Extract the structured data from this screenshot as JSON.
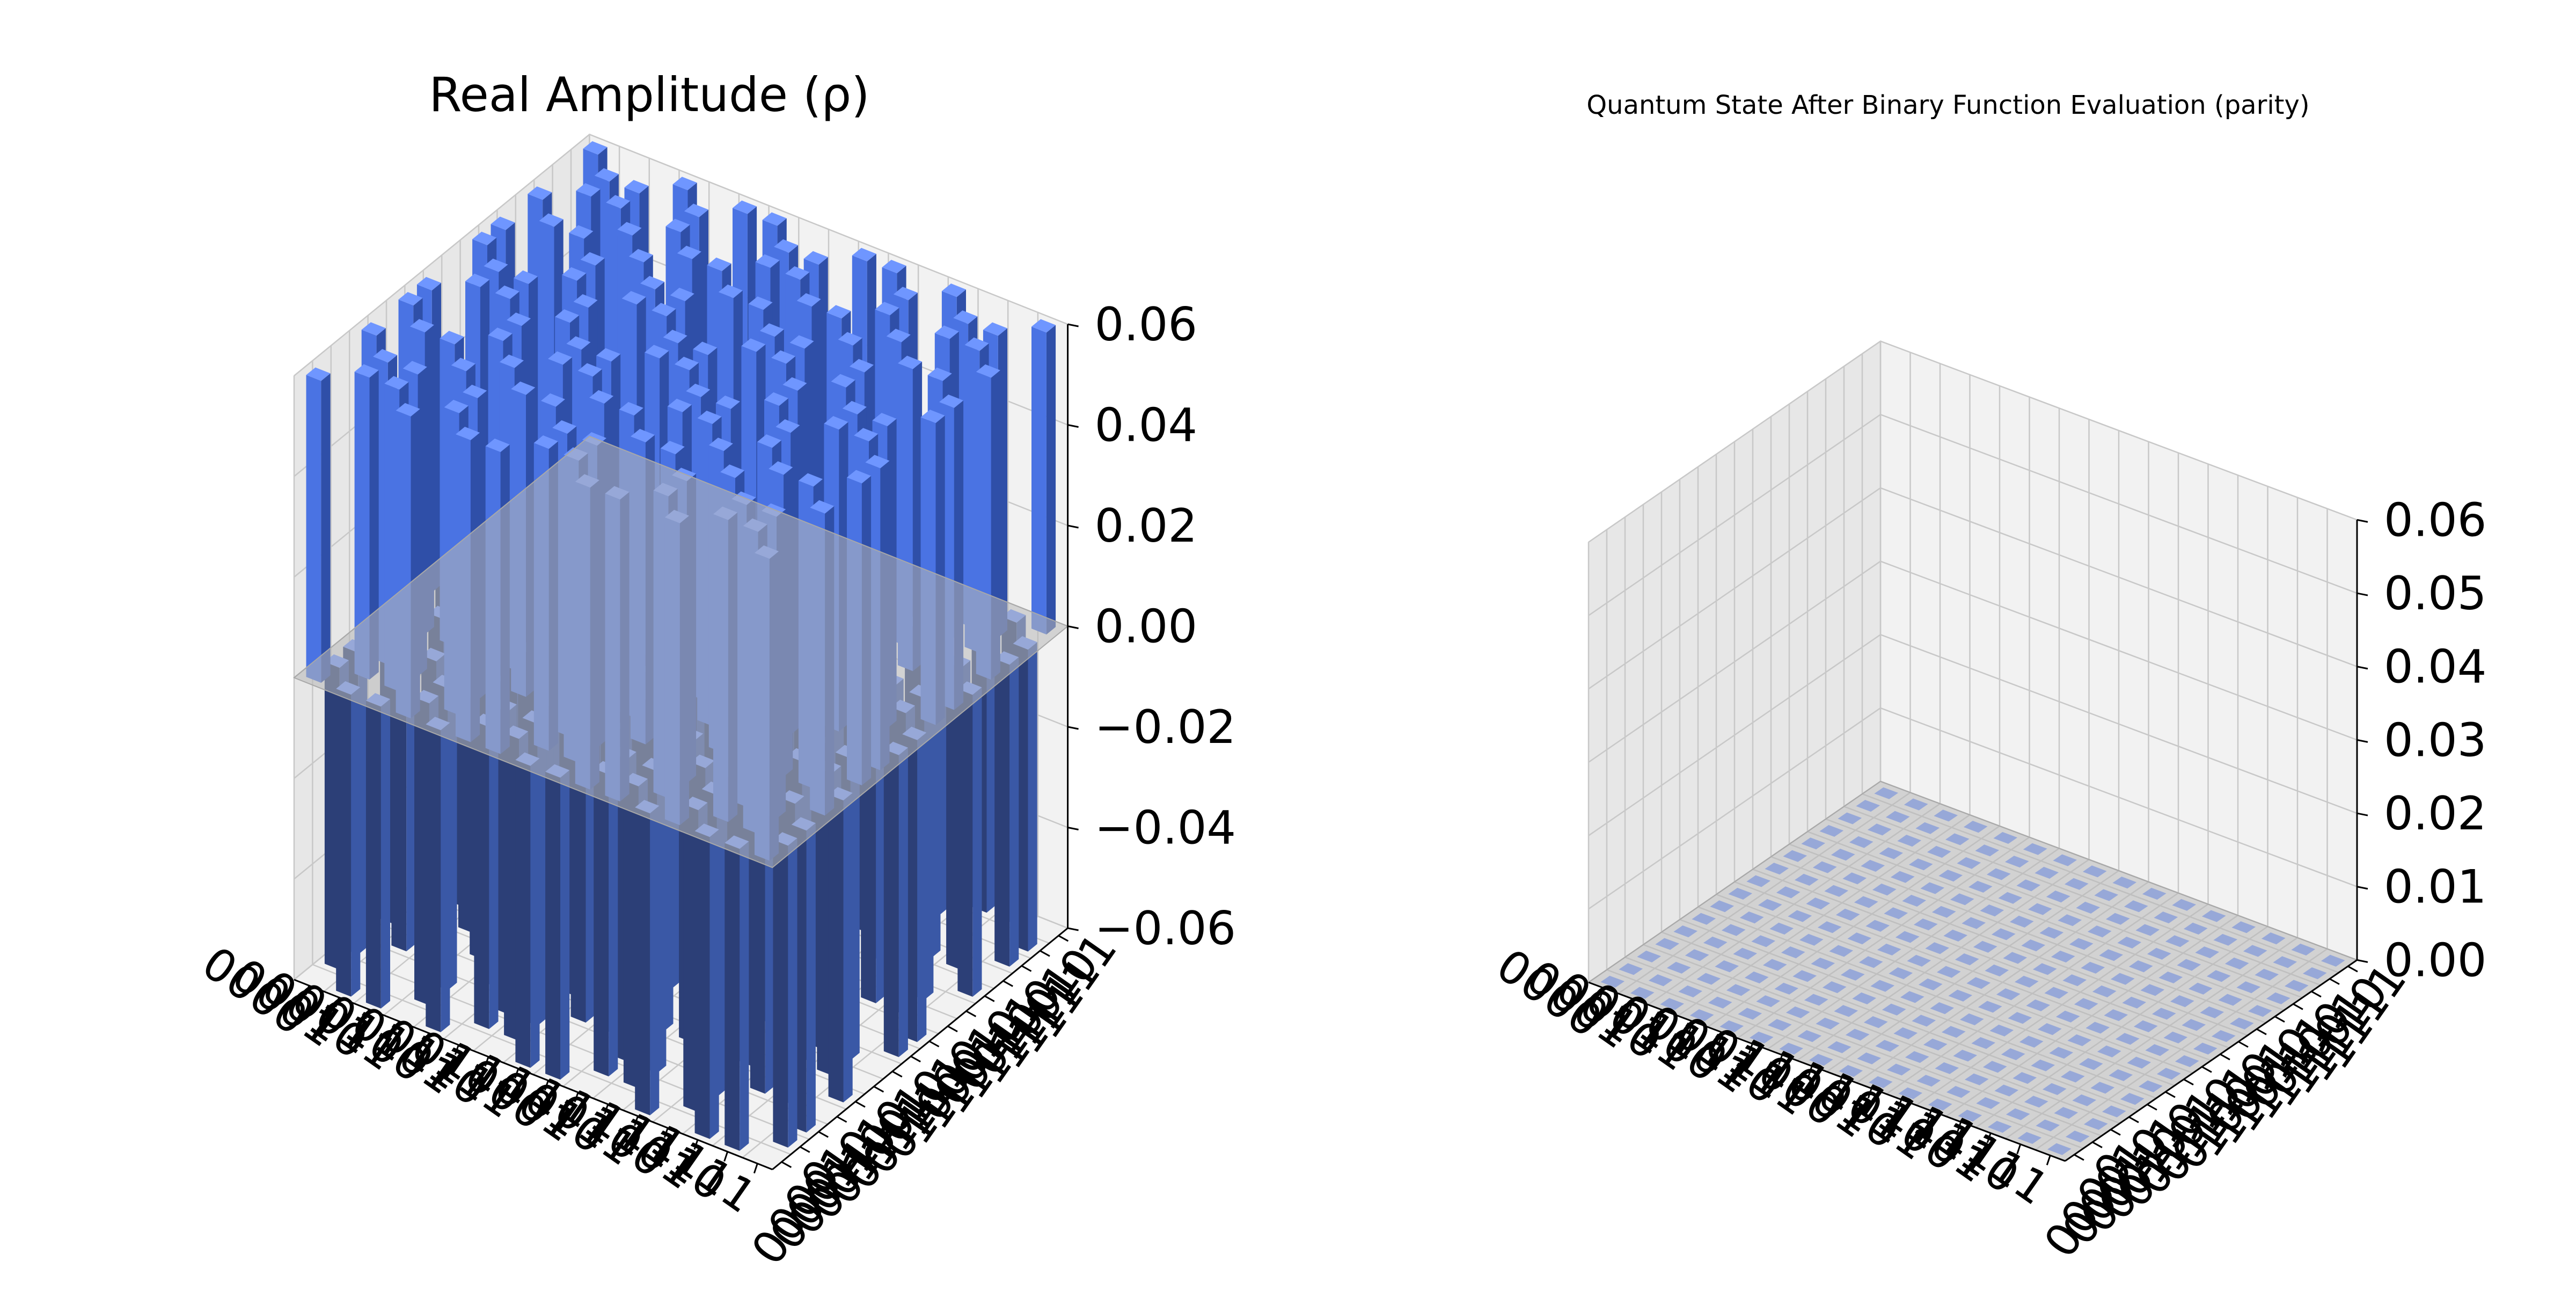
{
  "colors": {
    "bar_top": "#6f96ff",
    "bar_front": "#4a73e3",
    "bar_side": "#2f4fa8",
    "bar_neg_front": "#2c3f77",
    "bar_neg_side": "#3a58a6",
    "pane": "#f2f2f2",
    "pane_dark": "#e7e7e7",
    "grid": "#c8c8c8",
    "zero_plane": "#b8b8b8"
  },
  "chart_data": [
    {
      "type": "bar3d",
      "title": "Real Amplitude (ρ)",
      "row_labels": [
        "0000",
        "0001",
        "0010",
        "0011",
        "0100",
        "0101",
        "0110",
        "0111",
        "1000",
        "1001",
        "1010",
        "1011",
        "1100",
        "1101",
        "1110",
        "1111"
      ],
      "col_labels": [
        "0000",
        "0001",
        "0010",
        "0011",
        "0100",
        "0101",
        "0110",
        "0111",
        "1000",
        "1001",
        "1010",
        "1011",
        "1100",
        "1101",
        "1110",
        "1111"
      ],
      "zticks": [
        "−0.06",
        "−0.04",
        "−0.02",
        "0.00",
        "0.02",
        "0.04",
        "0.06"
      ],
      "zlim": [
        -0.0625,
        0.0625
      ],
      "grid": true,
      "matrix_rule": "rho[i][j] = 0.0625 * (-1)^(popcount(i) + popcount(j))",
      "row_parity": [
        1,
        -1,
        -1,
        1,
        -1,
        1,
        1,
        -1,
        -1,
        1,
        1,
        -1,
        1,
        -1,
        -1,
        1
      ],
      "value_magnitude": 0.0625
    },
    {
      "type": "bar3d",
      "title": "Quantum State After Binary Function Evaluation (parity)",
      "row_labels": [
        "0000",
        "0001",
        "0010",
        "0011",
        "0100",
        "0101",
        "0110",
        "0111",
        "1000",
        "1001",
        "1010",
        "1011",
        "1100",
        "1101",
        "1110",
        "1111"
      ],
      "col_labels": [
        "0000",
        "0001",
        "0010",
        "0011",
        "0100",
        "0101",
        "0110",
        "0111",
        "1000",
        "1001",
        "1010",
        "1011",
        "1100",
        "1101",
        "1110",
        "1111"
      ],
      "zticks": [
        "0.00",
        "0.01",
        "0.02",
        "0.03",
        "0.04",
        "0.05",
        "0.06"
      ],
      "zlim": [
        0,
        0.06
      ],
      "grid": true,
      "all_values": 0
    }
  ]
}
